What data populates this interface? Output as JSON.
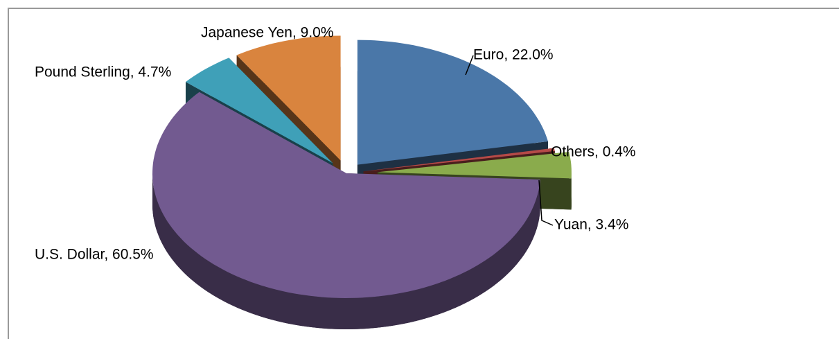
{
  "chart_data": {
    "type": "pie",
    "values": [
      22.0,
      0.4,
      3.4,
      60.5,
      4.7,
      9.0
    ],
    "value_labels": [
      "Euro, 22.0%",
      "Others, 0.4%",
      "Yuan, 3.4%",
      "U.S. Dollar, 60.5%",
      "Pound Sterling, 4.7%",
      "Japanese Yen, 9.0%"
    ],
    "colors": [
      "#4a77a8",
      "#b54a48",
      "#8aab4c",
      "#725a90",
      "#3fa0b8",
      "#d9843e"
    ]
  }
}
